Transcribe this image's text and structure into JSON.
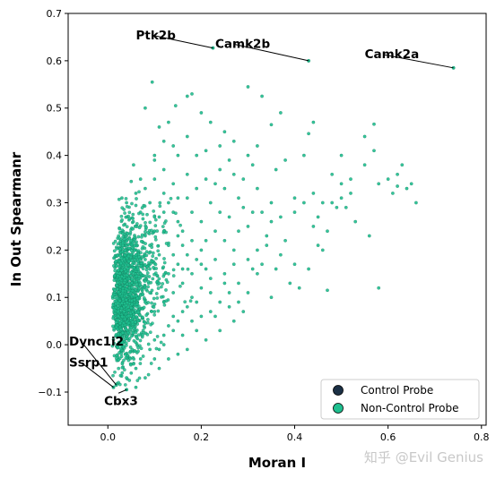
{
  "chart_data": {
    "type": "scatter",
    "title": "",
    "xlabel": "Moran I",
    "ylabel": "In Out Spearmanr",
    "xlim": [
      -0.085,
      0.81
    ],
    "ylim": [
      -0.17,
      0.7
    ],
    "xticks": [
      0.0,
      0.2,
      0.4,
      0.6,
      0.8
    ],
    "xtick_labels": [
      "0.0",
      "0.2",
      "0.4",
      "0.6",
      "0.8"
    ],
    "yticks": [
      -0.1,
      0.0,
      0.1,
      0.2,
      0.3,
      0.4,
      0.5,
      0.6,
      0.7
    ],
    "ytick_labels": [
      "−0.1",
      "0.0",
      "0.1",
      "0.2",
      "0.3",
      "0.4",
      "0.5",
      "0.6",
      "0.7"
    ],
    "grid": false,
    "legend_position": "lower-right",
    "series": [
      {
        "name": "Control Probe",
        "color": "#1b3045",
        "points": []
      },
      {
        "name": "Non-Control Probe",
        "color": "#1fbf8f",
        "points": [
          [
            0.05,
            0.345
          ],
          [
            0.055,
            0.38
          ],
          [
            0.07,
            0.35
          ],
          [
            0.1,
            0.39
          ],
          [
            0.1,
            0.4
          ],
          [
            0.12,
            0.43
          ],
          [
            0.11,
            0.46
          ],
          [
            0.08,
            0.5
          ],
          [
            0.095,
            0.555
          ],
          [
            0.145,
            0.505
          ],
          [
            0.17,
            0.525
          ],
          [
            0.18,
            0.53
          ],
          [
            0.3,
            0.545
          ],
          [
            0.35,
            0.465
          ],
          [
            0.37,
            0.49
          ],
          [
            0.33,
            0.525
          ],
          [
            0.43,
            0.446
          ],
          [
            0.44,
            0.47
          ],
          [
            0.57,
            0.466
          ],
          [
            0.55,
            0.44
          ],
          [
            0.3,
            0.4
          ],
          [
            0.31,
            0.38
          ],
          [
            0.36,
            0.37
          ],
          [
            0.38,
            0.39
          ],
          [
            0.32,
            0.42
          ],
          [
            0.42,
            0.4
          ],
          [
            0.48,
            0.36
          ],
          [
            0.5,
            0.4
          ],
          [
            0.52,
            0.35
          ],
          [
            0.55,
            0.38
          ],
          [
            0.57,
            0.41
          ],
          [
            0.58,
            0.34
          ],
          [
            0.6,
            0.35
          ],
          [
            0.62,
            0.335
          ],
          [
            0.64,
            0.33
          ],
          [
            0.62,
            0.36
          ],
          [
            0.63,
            0.38
          ],
          [
            0.61,
            0.32
          ],
          [
            0.5,
            0.34
          ],
          [
            0.44,
            0.32
          ],
          [
            0.46,
            0.3
          ],
          [
            0.4,
            0.31
          ],
          [
            0.51,
            0.29
          ],
          [
            0.48,
            0.3
          ],
          [
            0.42,
            0.3
          ],
          [
            0.5,
            0.31
          ],
          [
            0.49,
            0.29
          ],
          [
            0.52,
            0.32
          ],
          [
            0.28,
            0.31
          ],
          [
            0.25,
            0.33
          ],
          [
            0.23,
            0.34
          ],
          [
            0.22,
            0.3
          ],
          [
            0.31,
            0.28
          ],
          [
            0.33,
            0.28
          ],
          [
            0.37,
            0.27
          ],
          [
            0.4,
            0.28
          ],
          [
            0.45,
            0.27
          ],
          [
            0.35,
            0.26
          ],
          [
            0.3,
            0.25
          ],
          [
            0.28,
            0.24
          ],
          [
            0.25,
            0.22
          ],
          [
            0.34,
            0.23
          ],
          [
            0.38,
            0.22
          ],
          [
            0.27,
            0.2
          ],
          [
            0.3,
            0.18
          ],
          [
            0.33,
            0.17
          ],
          [
            0.36,
            0.16
          ],
          [
            0.4,
            0.17
          ],
          [
            0.43,
            0.16
          ],
          [
            0.46,
            0.2
          ],
          [
            0.41,
            0.12
          ],
          [
            0.47,
            0.115
          ],
          [
            0.58,
            0.12
          ],
          [
            0.39,
            0.13
          ],
          [
            0.35,
            0.1
          ],
          [
            0.3,
            0.11
          ],
          [
            0.28,
            0.13
          ],
          [
            0.25,
            0.15
          ],
          [
            0.22,
            0.14
          ],
          [
            0.2,
            0.12
          ],
          [
            0.18,
            0.1
          ],
          [
            0.17,
            0.08
          ],
          [
            0.16,
            0.07
          ],
          [
            0.15,
            0.05
          ],
          [
            0.14,
            0.03
          ],
          [
            0.12,
            0.02
          ],
          [
            0.1,
            0.01
          ],
          [
            0.09,
            -0.01
          ],
          [
            0.07,
            -0.03
          ],
          [
            0.06,
            -0.05
          ],
          [
            0.05,
            -0.06
          ],
          [
            0.04,
            -0.07
          ],
          [
            0.06,
            -0.09
          ],
          [
            0.11,
            -0.01
          ],
          [
            0.13,
            0.04
          ],
          [
            0.16,
            0.02
          ],
          [
            0.18,
            0.05
          ],
          [
            0.2,
            0.06
          ],
          [
            0.22,
            0.07
          ],
          [
            0.19,
            0.09
          ],
          [
            0.24,
            0.09
          ],
          [
            0.26,
            0.11
          ],
          [
            0.21,
            0.16
          ],
          [
            0.23,
            0.18
          ],
          [
            0.2,
            0.2
          ],
          [
            0.18,
            0.22
          ],
          [
            0.16,
            0.24
          ],
          [
            0.15,
            0.26
          ],
          [
            0.14,
            0.28
          ],
          [
            0.13,
            0.3
          ],
          [
            0.12,
            0.32
          ],
          [
            0.14,
            0.34
          ],
          [
            0.17,
            0.36
          ],
          [
            0.19,
            0.33
          ],
          [
            0.21,
            0.35
          ],
          [
            0.24,
            0.37
          ],
          [
            0.26,
            0.39
          ],
          [
            0.27,
            0.36
          ],
          [
            0.29,
            0.35
          ],
          [
            0.32,
            0.33
          ],
          [
            0.24,
            0.28
          ],
          [
            0.26,
            0.27
          ],
          [
            0.29,
            0.29
          ],
          [
            0.2,
            0.26
          ],
          [
            0.18,
            0.28
          ],
          [
            0.17,
            0.19
          ],
          [
            0.15,
            0.17
          ],
          [
            0.13,
            0.15
          ],
          [
            0.11,
            0.13
          ],
          [
            0.09,
            0.11
          ],
          [
            0.08,
            0.09
          ],
          [
            0.1,
            0.07
          ],
          [
            0.12,
            0.09
          ],
          [
            0.14,
            0.11
          ],
          [
            0.16,
            0.13
          ],
          [
            0.07,
            0.15
          ],
          [
            0.08,
            0.18
          ],
          [
            0.09,
            0.21
          ],
          [
            0.1,
            0.24
          ],
          [
            0.11,
            0.27
          ],
          [
            0.09,
            0.3
          ],
          [
            0.07,
            0.28
          ],
          [
            0.06,
            0.25
          ],
          [
            0.05,
            0.22
          ],
          [
            0.06,
            0.19
          ],
          [
            0.04,
            0.3
          ],
          [
            0.03,
            0.31
          ],
          [
            0.06,
            0.32
          ],
          [
            0.08,
            0.33
          ],
          [
            0.1,
            0.35
          ],
          [
            0.12,
            0.37
          ],
          [
            0.15,
            0.4
          ],
          [
            0.14,
            0.42
          ],
          [
            0.17,
            0.44
          ],
          [
            0.13,
            0.47
          ],
          [
            0.2,
            0.49
          ],
          [
            0.22,
            0.47
          ],
          [
            0.25,
            0.45
          ],
          [
            0.27,
            0.43
          ],
          [
            0.24,
            0.42
          ],
          [
            0.21,
            0.41
          ],
          [
            0.19,
            0.4
          ],
          [
            0.35,
            0.3
          ],
          [
            0.34,
            0.21
          ],
          [
            0.37,
            0.19
          ],
          [
            0.44,
            0.25
          ],
          [
            0.47,
            0.24
          ],
          [
            0.53,
            0.26
          ],
          [
            0.56,
            0.23
          ],
          [
            0.65,
            0.34
          ],
          [
            0.66,
            0.3
          ],
          [
            0.45,
            0.21
          ],
          [
            0.32,
            0.15
          ],
          [
            0.29,
            0.07
          ],
          [
            0.27,
            0.05
          ],
          [
            0.24,
            0.03
          ],
          [
            0.21,
            0.01
          ],
          [
            0.23,
            0.06
          ],
          [
            0.26,
            0.08
          ],
          [
            0.17,
            -0.01
          ],
          [
            0.19,
            0.03
          ],
          [
            0.15,
            -0.02
          ],
          [
            0.13,
            -0.03
          ],
          [
            0.11,
            -0.05
          ],
          [
            0.08,
            -0.07
          ],
          [
            0.1,
            -0.03
          ],
          [
            0.12,
            0.0
          ],
          [
            0.14,
            0.06
          ],
          [
            0.31,
            0.16
          ],
          [
            0.28,
            0.09
          ],
          [
            0.22,
            0.11
          ],
          [
            0.25,
            0.13
          ],
          [
            0.23,
            0.24
          ],
          [
            0.21,
            0.22
          ],
          [
            0.19,
            0.18
          ],
          [
            0.27,
            0.17
          ],
          [
            0.32,
            0.2
          ],
          [
            0.11,
            0.19
          ],
          [
            0.13,
            0.21
          ],
          [
            0.15,
            0.23
          ],
          [
            0.16,
            0.21
          ],
          [
            0.12,
            0.24
          ],
          [
            0.14,
            0.19
          ],
          [
            0.09,
            0.16
          ],
          [
            0.1,
            0.27
          ],
          [
            0.08,
            0.23
          ],
          [
            0.12,
            0.28
          ],
          [
            0.15,
            0.31
          ],
          [
            0.17,
            0.31
          ],
          [
            0.18,
            0.15
          ],
          [
            0.2,
            0.17
          ],
          [
            0.16,
            0.16
          ]
        ],
        "dense_cloud": {
          "center": [
            0.018,
            0.09
          ],
          "count": 1400
        }
      }
    ],
    "annotations": [
      {
        "label": "Ptk2b",
        "point": [
          0.225,
          0.627
        ],
        "text_pos": [
          0.06,
          0.645
        ]
      },
      {
        "label": "Camk2b",
        "point": [
          0.43,
          0.6
        ],
        "text_pos": [
          0.23,
          0.627
        ]
      },
      {
        "label": "Camk2a",
        "point": [
          0.74,
          0.585
        ],
        "text_pos": [
          0.55,
          0.605
        ]
      },
      {
        "label": "Dync1i2",
        "point": [
          0.018,
          -0.085
        ],
        "text_pos": [
          -0.083,
          -0.002
        ]
      },
      {
        "label": "Ssrp1",
        "point": [
          0.012,
          -0.09
        ],
        "text_pos": [
          -0.083,
          -0.046
        ]
      },
      {
        "label": "Cbx3",
        "point": [
          0.04,
          -0.095
        ],
        "text_pos": [
          -0.008,
          -0.127
        ]
      }
    ]
  },
  "watermark": "知乎 @Evil Genius"
}
